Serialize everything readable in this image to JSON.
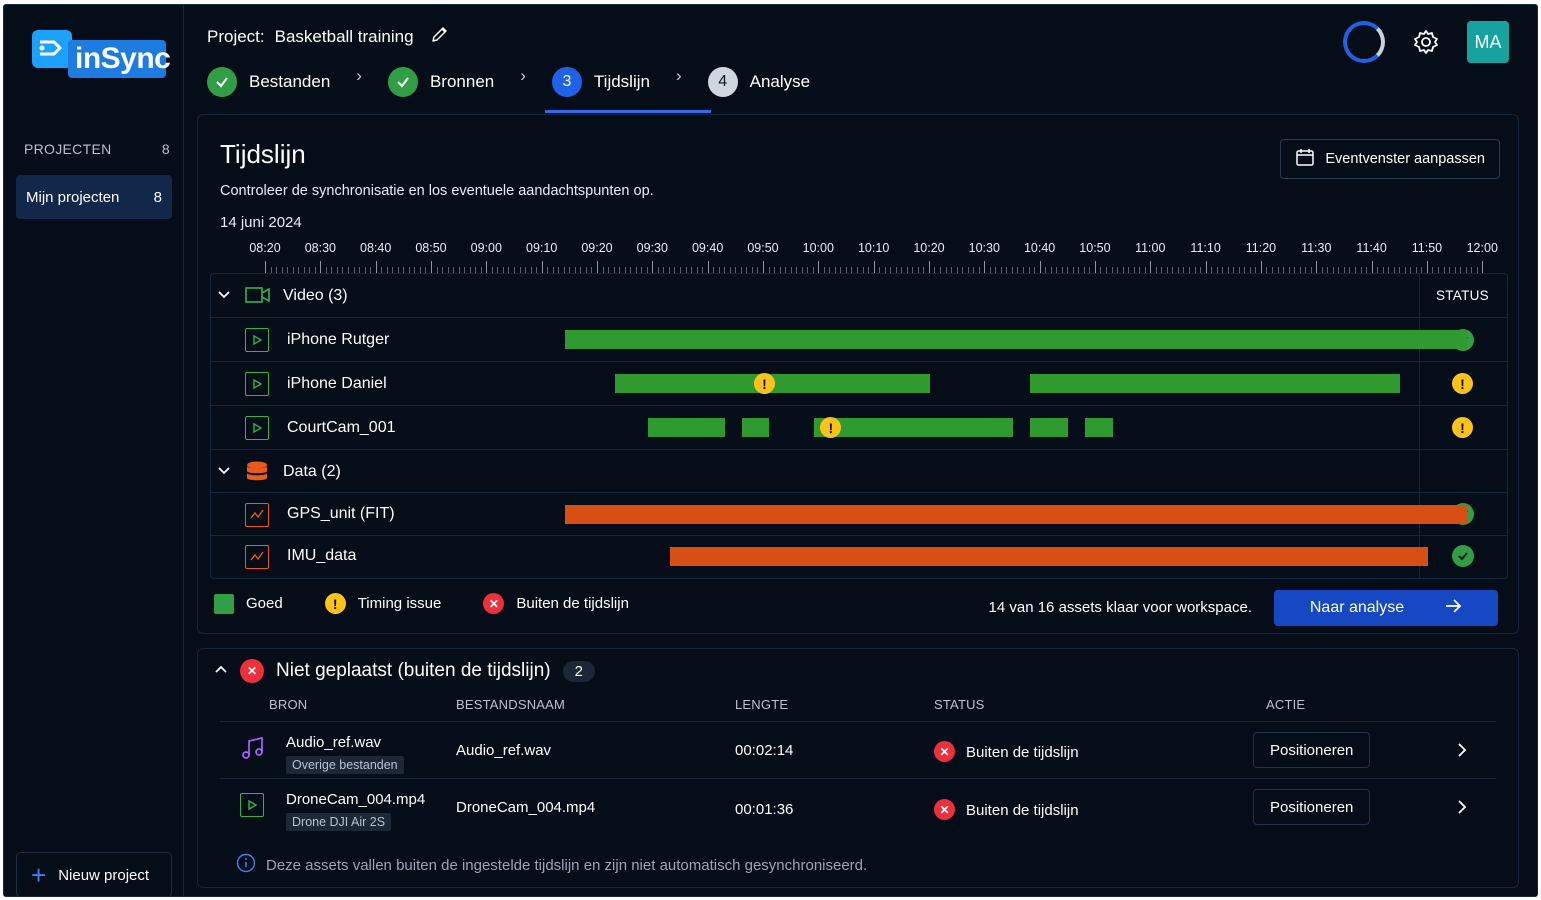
{
  "app": {
    "logo_text": "inSync",
    "brand_color": "#1e7be0"
  },
  "sidebar": {
    "section_label": "PROJECTEN",
    "section_count": "8",
    "items": [
      {
        "label": "Mijn projecten",
        "count": "8"
      }
    ],
    "new_project_label": "Nieuw project"
  },
  "header": {
    "project_prefix": "Project:",
    "project_name": "Basketball training",
    "avatar_initials": "MA",
    "steps": [
      {
        "label": "Bestanden",
        "state": "done"
      },
      {
        "label": "Bronnen",
        "state": "done"
      },
      {
        "label": "Tijdslijn",
        "state": "active",
        "number": "3"
      },
      {
        "label": "Analyse",
        "state": "todo",
        "number": "4"
      }
    ]
  },
  "timeline": {
    "title": "Tijdslijn",
    "subtitle": "Controleer de synchronisatie en los eventuele aandachtspunten op.",
    "date": "14 juni 2024",
    "event_window_button": "Eventvenster aanpassen",
    "time_ticks": [
      "08:20",
      "08:30",
      "08:40",
      "08:50",
      "09:00",
      "09:10",
      "09:20",
      "09:30",
      "09:40",
      "09:50",
      "10:00",
      "10:10",
      "10:20",
      "10:30",
      "10:40",
      "10:50",
      "11:00",
      "11:10",
      "11:20",
      "11:30",
      "11:40",
      "11:50",
      "12:00"
    ],
    "status_header": "STATUS",
    "groups": [
      {
        "label": "Video (3)",
        "tracks": [
          {
            "name": "iPhone Rutger",
            "status": "ok",
            "segments": [
              [
                "09:14",
                "11:57"
              ]
            ],
            "warnings": []
          },
          {
            "name": "iPhone Daniel",
            "status": "warning",
            "segments": [
              [
                "09:23",
                "10:20"
              ],
              [
                "10:38",
                "11:45"
              ]
            ],
            "warnings": [
              "09:50"
            ]
          },
          {
            "name": "CourtCam_001",
            "status": "warning",
            "segments": [
              [
                "09:29",
                "09:43"
              ],
              [
                "09:46",
                "09:51"
              ],
              [
                "09:59",
                "10:35"
              ],
              [
                "10:38",
                "10:45"
              ],
              [
                "10:48",
                "10:53"
              ]
            ],
            "warnings": [
              "10:02"
            ]
          }
        ]
      },
      {
        "label": "Data (2)",
        "tracks": [
          {
            "name": "GPS_unit (FIT)",
            "status": "ok",
            "segments": [
              [
                "09:14",
                "11:57"
              ]
            ],
            "warnings": []
          },
          {
            "name": "IMU_data",
            "status": "ok",
            "segments": [
              [
                "09:33",
                "11:50"
              ]
            ],
            "warnings": []
          }
        ]
      }
    ],
    "legend": {
      "good": "Goed",
      "timing": "Timing issue",
      "outside": "Buiten de tijdslijn"
    },
    "ready": {
      "done": "14",
      "word_of": "van",
      "total": "16",
      "suffix": "assets klaar voor workspace."
    },
    "next_button": "Naar analyse",
    "colors": {
      "video": "#2f9a2f",
      "data": "#d84e14",
      "warning": "#ffc21a",
      "ok": "#2f9e44"
    }
  },
  "unplaced": {
    "title": "Niet geplaatst (buiten de tijdslijn)",
    "count": "2",
    "columns": [
      "BRON",
      "BESTANDSNAAM",
      "LENGTE",
      "STATUS",
      "ACTIE"
    ],
    "rows": [
      {
        "source": "Audio_ref.wav",
        "tag": "Overige bestanden",
        "filename": "Audio_ref.wav",
        "length": "00:02:14",
        "status": "Buiten de tijdslijn",
        "action": "Positioneren",
        "icon": "music-icon"
      },
      {
        "source": "DroneCam_004.mp4",
        "tag": "Drone DJI Air 2S",
        "filename": "DroneCam_004.mp4",
        "length": "00:01:36",
        "status": "Buiten de tijdslijn",
        "action": "Positioneren",
        "icon": "video-file-icon"
      }
    ],
    "info": "Deze assets vallen buiten de ingestelde tijdslijn en zijn niet automatisch gesynchroniseerd."
  }
}
